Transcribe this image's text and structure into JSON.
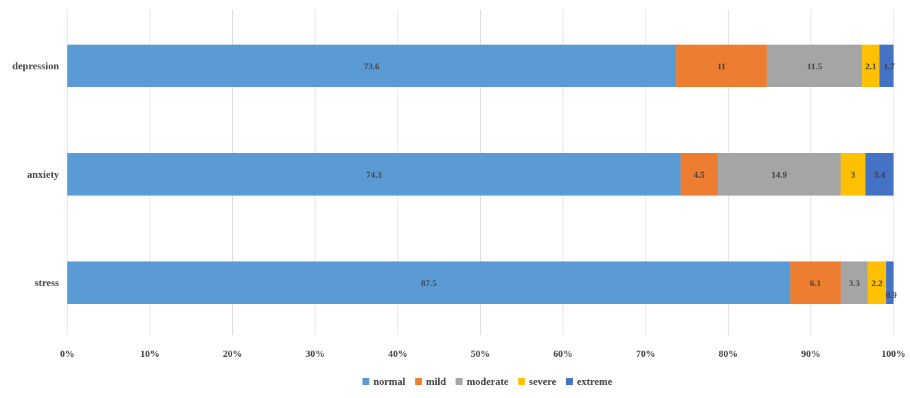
{
  "chart_data": {
    "type": "bar",
    "orientation": "horizontal",
    "stacked": "percent",
    "categories": [
      "depression",
      "anxiety",
      "stress"
    ],
    "series": [
      {
        "name": "normal",
        "color": "#5B9BD5",
        "values": [
          73.6,
          74.3,
          87.5
        ]
      },
      {
        "name": "mild",
        "color": "#ED7D31",
        "values": [
          11,
          4.5,
          6.1
        ]
      },
      {
        "name": "moderate",
        "color": "#A5A5A5",
        "values": [
          11.5,
          14.9,
          3.3
        ]
      },
      {
        "name": "severe",
        "color": "#FFC000",
        "values": [
          2.1,
          3,
          2.2
        ]
      },
      {
        "name": "extreme",
        "color": "#4472C4",
        "values": [
          1.7,
          3.4,
          0.9
        ]
      }
    ],
    "data_labels": [
      [
        "73.6",
        "11",
        "11.5",
        "2.1",
        "1.7"
      ],
      [
        "74.3",
        "4.5",
        "14.9",
        "3",
        "3.4"
      ],
      [
        "87.5",
        "6.1",
        "3.3",
        "2.2",
        "0.9"
      ]
    ],
    "x_ticks": [
      "0%",
      "10%",
      "20%",
      "30%",
      "40%",
      "50%",
      "60%",
      "70%",
      "80%",
      "90%",
      "100%"
    ],
    "xlim": [
      0,
      100
    ],
    "grid": true,
    "legend_position": "bottom",
    "title": "",
    "xlabel": "",
    "ylabel": ""
  }
}
